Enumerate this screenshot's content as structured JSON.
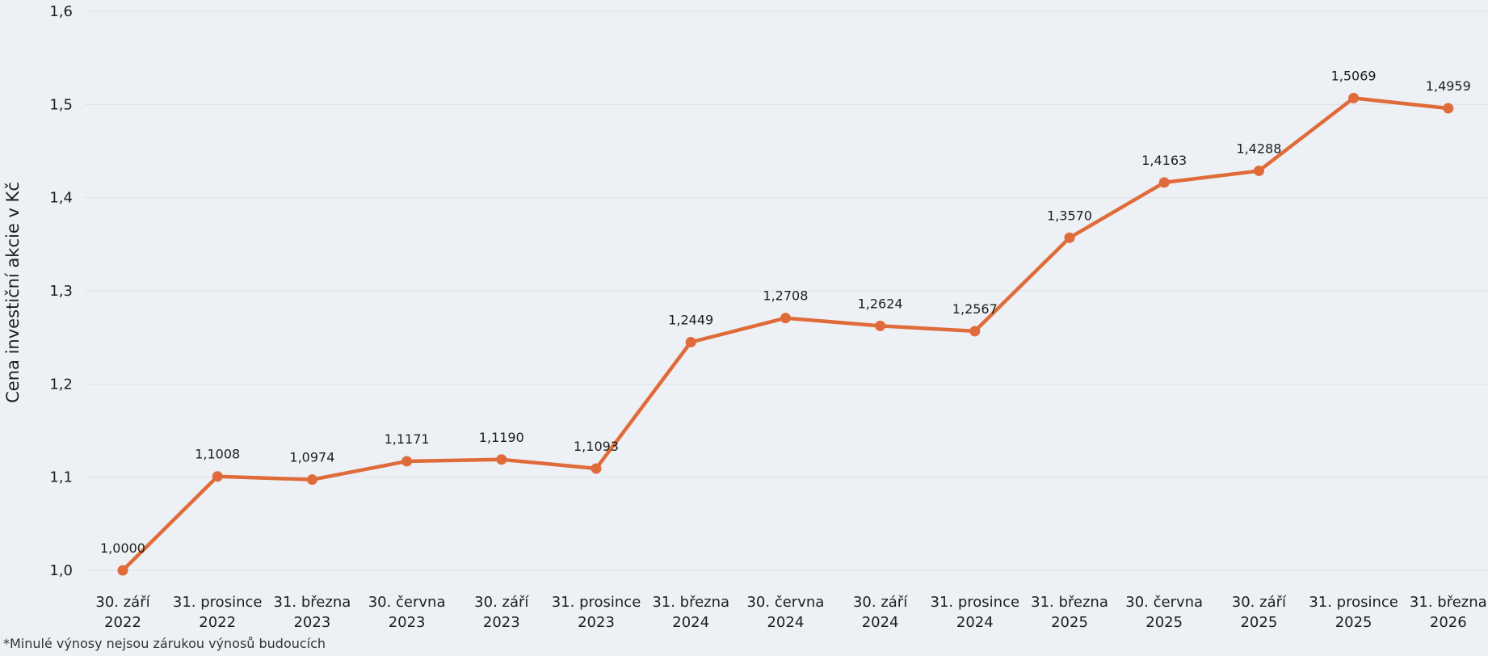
{
  "chart_data": {
    "type": "line",
    "title": "",
    "xlabel": "",
    "ylabel": "Cena investiční akcie v Kč",
    "ylim": [
      1.0,
      1.6
    ],
    "yticks": [
      "1,0",
      "1,1",
      "1,2",
      "1,3",
      "1,4",
      "1,5",
      "1,6"
    ],
    "ytick_values": [
      1.0,
      1.1,
      1.2,
      1.3,
      1.4,
      1.5,
      1.6
    ],
    "grid": true,
    "categories": [
      [
        "30. září",
        "2022"
      ],
      [
        "31. prosince",
        "2022"
      ],
      [
        "31. března",
        "2023"
      ],
      [
        "30. června",
        "2023"
      ],
      [
        "30. září",
        "2023"
      ],
      [
        "31. prosince",
        "2023"
      ],
      [
        "31. března",
        "2024"
      ],
      [
        "30. června",
        "2024"
      ],
      [
        "30. září",
        "2024"
      ],
      [
        "31. prosince",
        "2024"
      ],
      [
        "31. března",
        "2025"
      ],
      [
        "30. června",
        "2025"
      ],
      [
        "30. září",
        "2025"
      ],
      [
        "31. prosince",
        "2025"
      ],
      [
        "31. března",
        "2026"
      ]
    ],
    "values": [
      1.0,
      1.1008,
      1.0974,
      1.1171,
      1.119,
      1.1093,
      1.2449,
      1.2708,
      1.2624,
      1.2567,
      1.357,
      1.4163,
      1.4288,
      1.5069,
      1.4959
    ],
    "value_labels": [
      "1,0000",
      "1,1008",
      "1,0974",
      "1,1171",
      "1,1190",
      "1,1093",
      "1,2449",
      "1,2708",
      "1,2624",
      "1,2567",
      "1,3570",
      "1,4163",
      "1,4288",
      "1,5069",
      "1,4959"
    ],
    "line_color": "#e06b3a",
    "grid_color": "#dde1e6"
  },
  "footnote": "*Minulé výnosy nejsou zárukou výnosů budoucích"
}
